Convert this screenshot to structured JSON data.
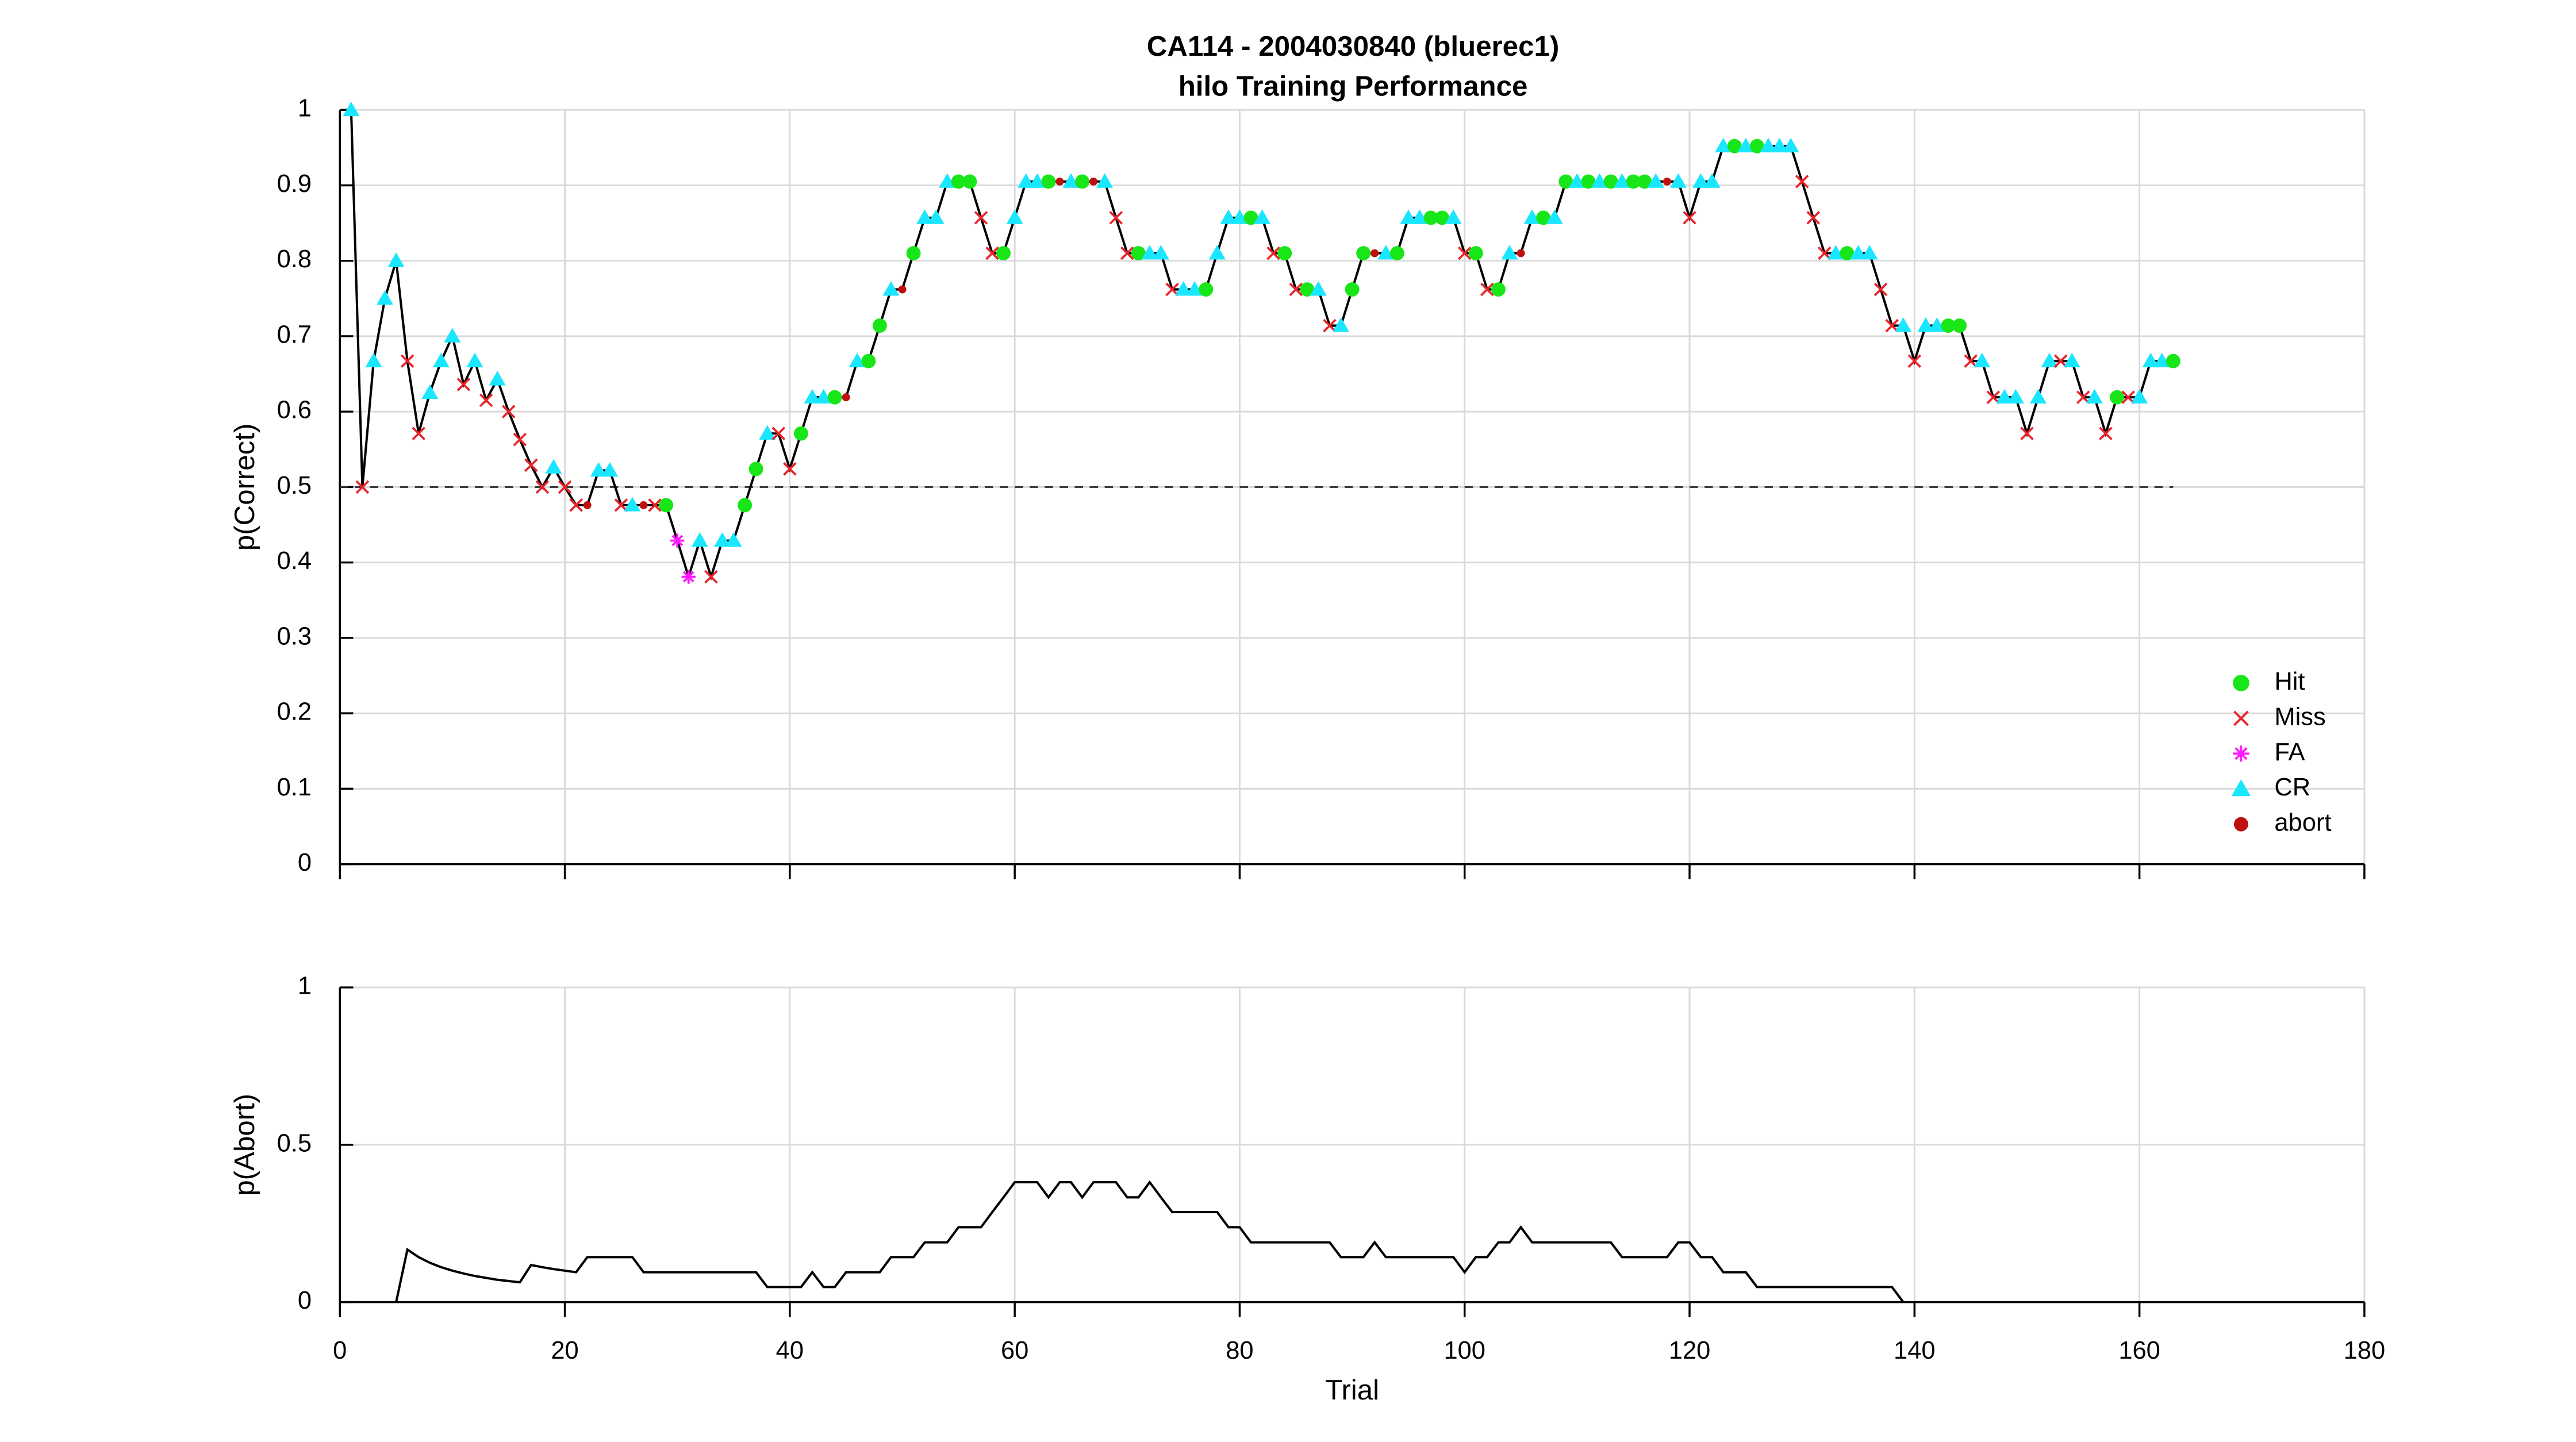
{
  "chart_data": [
    {
      "type": "line",
      "title": "CA114 - 2004030840 (bluerec1)",
      "subtitle": "hilo Training Performance",
      "y_label": "p(Correct)",
      "line_color": "#000000",
      "x": [
        1,
        2,
        3,
        4,
        5,
        6,
        7,
        8,
        9,
        10,
        11,
        12,
        13,
        14,
        15,
        16,
        17,
        18,
        19,
        20,
        21,
        22,
        23,
        24,
        25,
        26,
        27,
        28,
        29,
        30,
        31,
        32,
        33,
        34,
        35,
        36,
        37,
        38,
        39,
        40,
        41,
        42,
        43,
        44,
        45,
        46,
        47,
        48,
        49,
        50,
        51,
        52,
        53,
        54,
        55,
        56,
        57,
        58,
        59,
        60,
        61,
        62,
        63,
        64,
        65,
        66,
        67,
        68,
        69,
        70,
        71,
        72,
        73,
        74,
        75,
        76,
        77,
        78,
        79,
        80,
        81,
        82,
        83,
        84,
        85,
        86,
        87,
        88,
        89,
        90,
        91,
        92,
        93,
        94,
        95,
        96,
        97,
        98,
        99,
        100,
        101,
        102,
        103,
        104,
        105,
        106,
        107,
        108,
        109,
        110,
        111,
        112,
        113,
        114,
        115,
        116,
        117,
        118,
        119,
        120,
        121,
        122,
        123,
        124,
        125,
        126,
        127,
        128,
        129,
        130,
        131,
        132,
        133,
        134,
        135,
        136,
        137,
        138,
        139,
        140,
        141,
        142,
        143,
        144,
        145,
        146,
        147,
        148,
        149,
        150,
        151,
        152,
        153,
        154,
        155,
        156,
        157,
        158,
        159,
        160,
        161,
        162,
        163
      ],
      "values": [
        1,
        0.5,
        0.667,
        0.75,
        0.8,
        0.667,
        0.571,
        0.625,
        0.667,
        0.7,
        0.636,
        0.667,
        0.615,
        0.643,
        0.6,
        0.563,
        0.529,
        0.5,
        0.526,
        0.5,
        0.476,
        0.476,
        0.522,
        0.522,
        0.476,
        0.476,
        0.476,
        0.476,
        0.476,
        0.429,
        0.381,
        0.429,
        0.381,
        0.429,
        0.429,
        0.476,
        0.524,
        0.571,
        0.571,
        0.524,
        0.571,
        0.619,
        0.619,
        0.619,
        0.619,
        0.667,
        0.667,
        0.714,
        0.762,
        0.762,
        0.81,
        0.857,
        0.857,
        0.905,
        0.905,
        0.905,
        0.857,
        0.81,
        0.81,
        0.857,
        0.905,
        0.905,
        0.905,
        0.905,
        0.905,
        0.905,
        0.905,
        0.905,
        0.857,
        0.81,
        0.81,
        0.81,
        0.81,
        0.762,
        0.762,
        0.762,
        0.762,
        0.81,
        0.857,
        0.857,
        0.857,
        0.857,
        0.81,
        0.81,
        0.762,
        0.762,
        0.762,
        0.714,
        0.714,
        0.762,
        0.81,
        0.81,
        0.81,
        0.81,
        0.857,
        0.857,
        0.857,
        0.857,
        0.857,
        0.81,
        0.81,
        0.762,
        0.762,
        0.81,
        0.81,
        0.857,
        0.857,
        0.857,
        0.905,
        0.905,
        0.905,
        0.905,
        0.905,
        0.905,
        0.905,
        0.905,
        0.905,
        0.905,
        0.905,
        0.857,
        0.905,
        0.905,
        0.952,
        0.952,
        0.952,
        0.952,
        0.952,
        0.952,
        0.952,
        0.905,
        0.857,
        0.81,
        0.81,
        0.81,
        0.81,
        0.81,
        0.762,
        0.714,
        0.714,
        0.667,
        0.714,
        0.714,
        0.714,
        0.714,
        0.667,
        0.667,
        0.619,
        0.619,
        0.619,
        0.571,
        0.619,
        0.667,
        0.667,
        0.667,
        0.619,
        0.619,
        0.571,
        0.619,
        0.619,
        0.619,
        0.667,
        0.667,
        0.667
      ],
      "outcomes": [
        "CR",
        "Miss",
        "CR",
        "CR",
        "CR",
        "Miss",
        "Miss",
        "CR",
        "CR",
        "CR",
        "Miss",
        "CR",
        "Miss",
        "CR",
        "Miss",
        "Miss",
        "Miss",
        "Miss",
        "CR",
        "Miss",
        "Miss",
        "abort",
        "CR",
        "CR",
        "Miss",
        "CR",
        "abort",
        "Miss",
        "Hit",
        "FA",
        "FA",
        "CR",
        "Miss",
        "CR",
        "CR",
        "Hit",
        "Hit",
        "CR",
        "Miss",
        "Miss",
        "Hit",
        "CR",
        "CR",
        "Hit",
        "abort",
        "CR",
        "Hit",
        "Hit",
        "CR",
        "abort",
        "Hit",
        "CR",
        "CR",
        "CR",
        "Hit",
        "Hit",
        "Miss",
        "Miss",
        "Hit",
        "CR",
        "CR",
        "CR",
        "Hit",
        "abort",
        "CR",
        "Hit",
        "abort",
        "CR",
        "Miss",
        "Miss",
        "Hit",
        "CR",
        "CR",
        "Miss",
        "CR",
        "CR",
        "Hit",
        "CR",
        "CR",
        "CR",
        "Hit",
        "CR",
        "Miss",
        "Hit",
        "Miss",
        "Hit",
        "CR",
        "Miss",
        "CR",
        "Hit",
        "Hit",
        "abort",
        "CR",
        "Hit",
        "CR",
        "CR",
        "Hit",
        "Hit",
        "CR",
        "Miss",
        "Hit",
        "Miss",
        "Hit",
        "CR",
        "abort",
        "CR",
        "Hit",
        "CR",
        "Hit",
        "CR",
        "Hit",
        "CR",
        "Hit",
        "CR",
        "Hit",
        "Hit",
        "CR",
        "abort",
        "CR",
        "Miss",
        "CR",
        "CR",
        "CR",
        "Hit",
        "CR",
        "Hit",
        "CR",
        "CR",
        "CR",
        "Miss",
        "Miss",
        "Miss",
        "CR",
        "Hit",
        "CR",
        "CR",
        "Miss",
        "Miss",
        "CR",
        "Miss",
        "CR",
        "CR",
        "Hit",
        "Hit",
        "Miss",
        "CR",
        "Miss",
        "CR",
        "CR",
        "Miss",
        "CR",
        "CR",
        "Miss",
        "CR",
        "Miss",
        "CR",
        "Miss",
        "Hit",
        "Miss",
        "CR",
        "CR",
        "CR",
        "Hit"
      ],
      "series": [
        {
          "name": "Hit",
          "color": "#19e619",
          "marker": "circle"
        },
        {
          "name": "Miss",
          "color": "#e8242b",
          "marker": "x"
        },
        {
          "name": "FA",
          "color": "#ff1aff",
          "marker": "asterisk"
        },
        {
          "name": "CR",
          "color": "#1ae6ff",
          "marker": "triangle"
        },
        {
          "name": "abort",
          "color": "#bf1010",
          "marker": "dot"
        }
      ],
      "reference_line": 0.5,
      "xlim": [
        0,
        180
      ],
      "xticks": [
        0,
        20,
        40,
        60,
        80,
        100,
        120,
        140,
        160,
        180
      ],
      "show_xtick_labels": false,
      "ylim": [
        0,
        1
      ],
      "yticks": [
        0,
        0.1,
        0.2,
        0.3,
        0.4,
        0.5,
        0.6,
        0.7,
        0.8,
        0.9,
        1
      ],
      "grid": true,
      "legend": "lower right"
    },
    {
      "type": "line",
      "x_label": "Trial",
      "y_label": "p(Abort)",
      "line_color": "#000000",
      "x": [
        5,
        6,
        7,
        8,
        9,
        10,
        11,
        12,
        13,
        14,
        15,
        16,
        17,
        18,
        19,
        20,
        21,
        22,
        23,
        24,
        25,
        26,
        27,
        28,
        29,
        30,
        31,
        32,
        33,
        34,
        35,
        36,
        37,
        38,
        39,
        40,
        41,
        42,
        43,
        44,
        45,
        46,
        47,
        48,
        49,
        50,
        51,
        52,
        53,
        54,
        55,
        56,
        57,
        58,
        59,
        60,
        61,
        62,
        63,
        64,
        65,
        66,
        67,
        68,
        69,
        70,
        71,
        72,
        73,
        74,
        75,
        76,
        77,
        78,
        79,
        80,
        81,
        82,
        83,
        84,
        85,
        86,
        87,
        88,
        89,
        90,
        91,
        92,
        93,
        94,
        95,
        96,
        97,
        98,
        99,
        100,
        101,
        102,
        103,
        104,
        105,
        106,
        107,
        108,
        109,
        110,
        111,
        112,
        113,
        114,
        115,
        116,
        117,
        118,
        119,
        120,
        121,
        122,
        123,
        124,
        125,
        126,
        127,
        128,
        129,
        130,
        131,
        132,
        133,
        134,
        135,
        136,
        137,
        138,
        139
      ],
      "values": [
        0,
        0.167,
        0.143,
        0.125,
        0.111,
        0.1,
        0.091,
        0.083,
        0.077,
        0.071,
        0.067,
        0.063,
        0.118,
        0.111,
        0.105,
        0.1,
        0.095,
        0.143,
        0.143,
        0.143,
        0.143,
        0.143,
        0.095,
        0.095,
        0.095,
        0.095,
        0.095,
        0.095,
        0.095,
        0.095,
        0.095,
        0.095,
        0.095,
        0.048,
        0.048,
        0.048,
        0.048,
        0.095,
        0.048,
        0.048,
        0.095,
        0.095,
        0.095,
        0.095,
        0.143,
        0.143,
        0.143,
        0.19,
        0.19,
        0.19,
        0.238,
        0.238,
        0.238,
        0.286,
        0.333,
        0.381,
        0.381,
        0.381,
        0.333,
        0.381,
        0.381,
        0.333,
        0.381,
        0.381,
        0.381,
        0.333,
        0.333,
        0.381,
        0.333,
        0.286,
        0.286,
        0.286,
        0.286,
        0.286,
        0.238,
        0.238,
        0.19,
        0.19,
        0.19,
        0.19,
        0.19,
        0.19,
        0.19,
        0.19,
        0.143,
        0.143,
        0.143,
        0.19,
        0.143,
        0.143,
        0.143,
        0.143,
        0.143,
        0.143,
        0.143,
        0.095,
        0.143,
        0.143,
        0.19,
        0.19,
        0.238,
        0.19,
        0.19,
        0.19,
        0.19,
        0.19,
        0.19,
        0.19,
        0.19,
        0.143,
        0.143,
        0.143,
        0.143,
        0.143,
        0.19,
        0.19,
        0.143,
        0.143,
        0.095,
        0.095,
        0.095,
        0.048,
        0.048,
        0.048,
        0.048,
        0.048,
        0.048,
        0.048,
        0.048,
        0.048,
        0.048,
        0.048,
        0.048,
        0.048,
        0
      ],
      "xlim": [
        0,
        180
      ],
      "xticks": [
        0,
        20,
        40,
        60,
        80,
        100,
        120,
        140,
        160,
        180
      ],
      "show_xtick_labels": true,
      "ylim": [
        0,
        1
      ],
      "yticks": [
        0,
        0.5,
        1
      ],
      "grid": true
    }
  ]
}
